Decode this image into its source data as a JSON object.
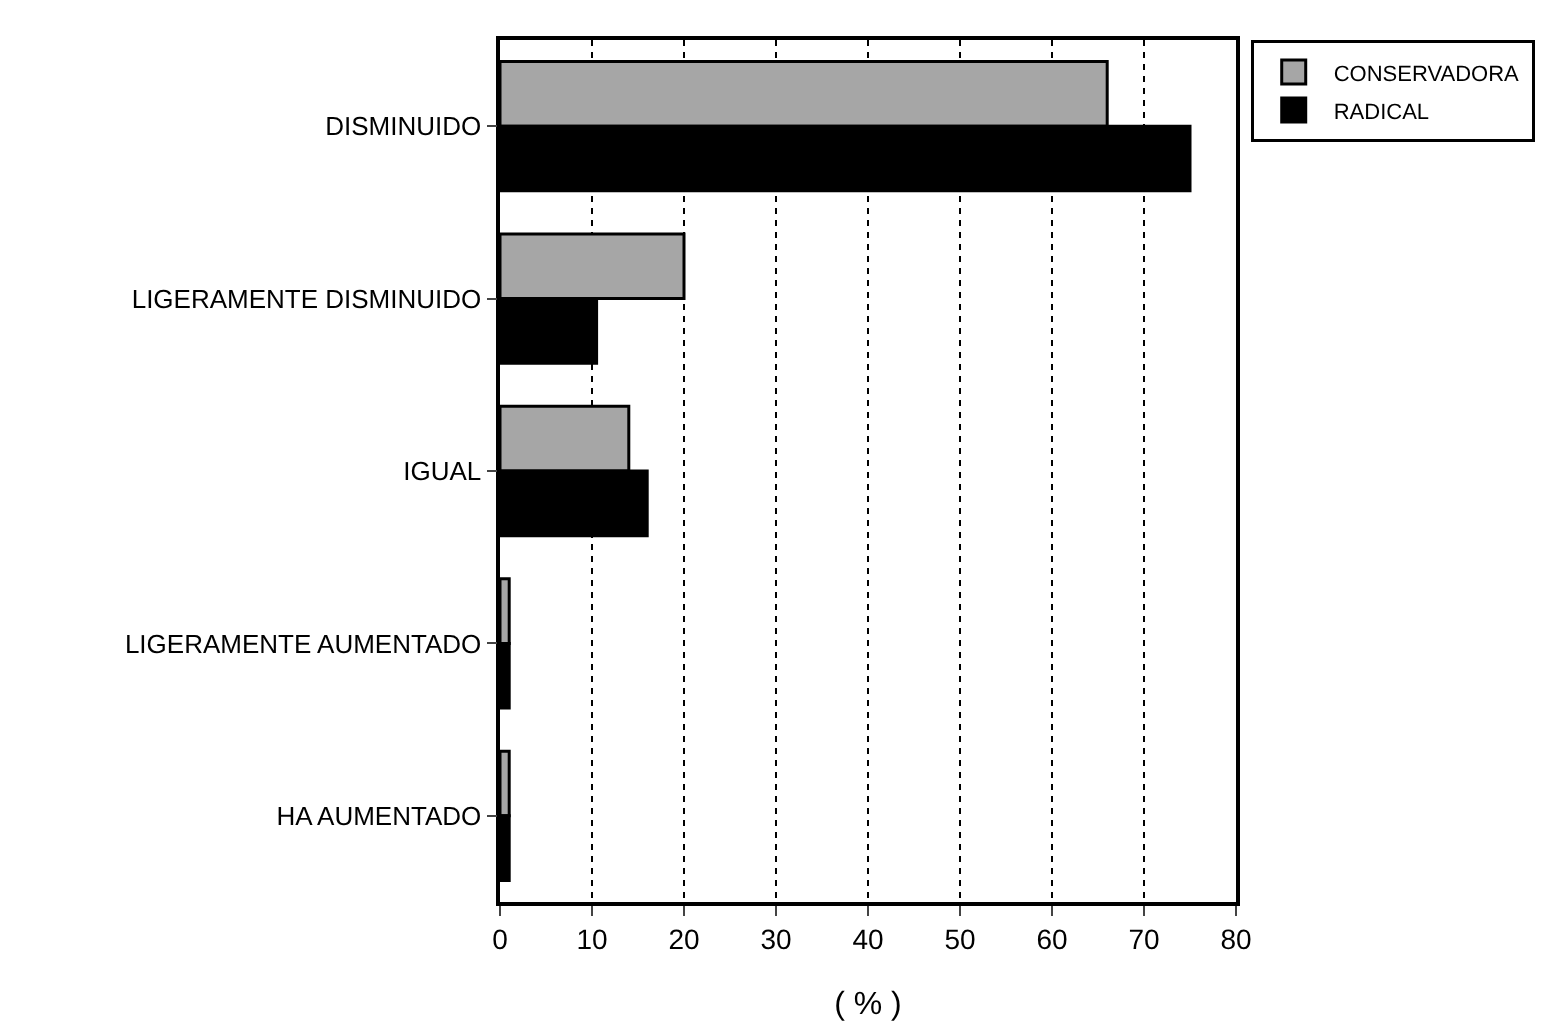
{
  "chart_data": {
    "type": "bar",
    "orientation": "horizontal",
    "xlabel": "( % )",
    "categories": [
      "DISMINUIDO",
      "LIGERAMENTE DISMINUIDO",
      "IGUAL",
      "LIGERAMENTE AUMENTADO",
      "HA AUMENTADO"
    ],
    "series": [
      {
        "name": "CONSERVADORA",
        "color": "#a6a6a6",
        "values": [
          66,
          20,
          14,
          1,
          1
        ]
      },
      {
        "name": "RADICAL",
        "color": "#000000",
        "values": [
          75,
          10.5,
          16,
          1,
          1
        ]
      }
    ],
    "xlim": [
      0,
      80
    ],
    "xticks": [
      0,
      10,
      20,
      30,
      40,
      50,
      60,
      70,
      80
    ],
    "grid": "x",
    "legend": "top right"
  }
}
